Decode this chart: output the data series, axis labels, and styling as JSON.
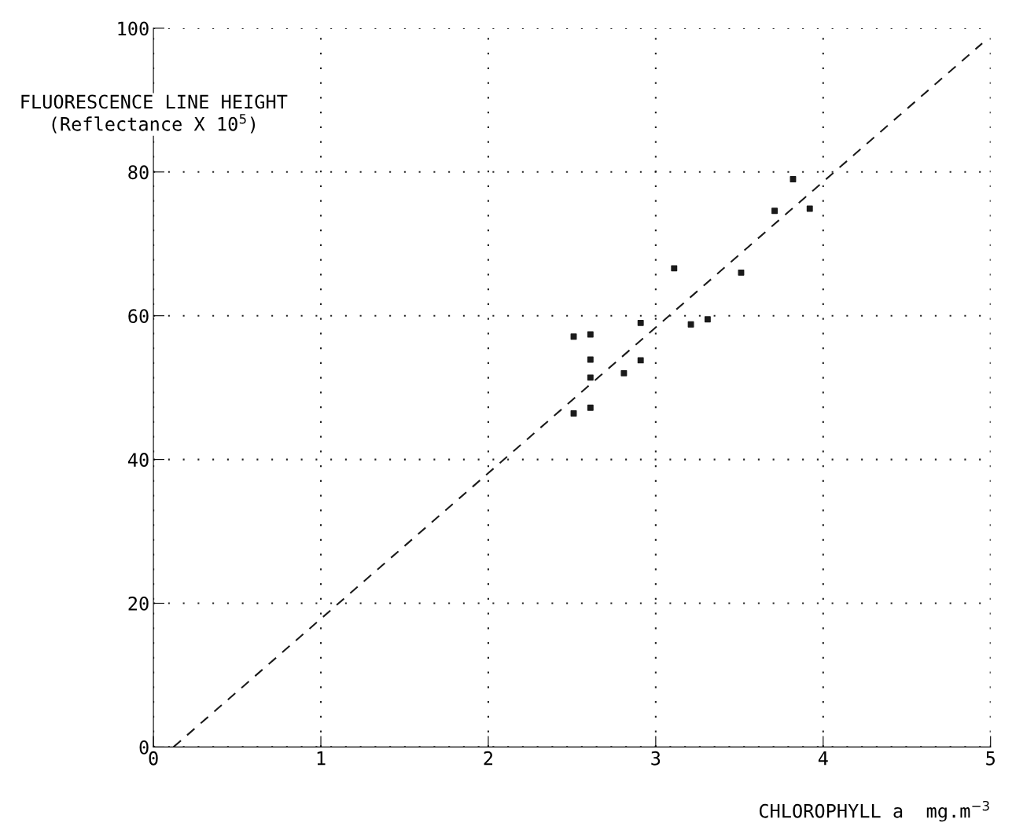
{
  "chart_data": {
    "type": "scatter",
    "xlabel": "CHLOROPHYLL a  mg.m$^{−3}$",
    "ylabel": "FLUORESCENCE LINE HEIGHT\n(Reflectance X 10$^{5}$)",
    "xlim": [
      0,
      5
    ],
    "ylim": [
      0,
      100
    ],
    "xticks": [
      0,
      1,
      2,
      3,
      4,
      5
    ],
    "yticks": [
      0,
      20,
      40,
      60,
      80,
      100
    ],
    "grid": true,
    "marker": "square",
    "series": [
      {
        "color": "#1a1a1a",
        "x": [
          2.51,
          2.61,
          2.61,
          2.61,
          2.51,
          2.61,
          2.81,
          2.91,
          2.91,
          3.11,
          3.21,
          3.31,
          3.51,
          3.71,
          3.82,
          3.92
        ],
        "values": [
          57.1,
          57.4,
          53.9,
          51.4,
          46.4,
          47.2,
          52.0,
          59.0,
          53.8,
          66.6,
          58.8,
          59.5,
          66.0,
          74.6,
          79.0,
          74.9
        ]
      },
      {
        "type": "line",
        "color": "#1a1a1a",
        "line_style": "dashed",
        "marker": "none",
        "x": [
          0.12,
          4.95
        ],
        "values": [
          0,
          97.9
        ]
      }
    ]
  }
}
